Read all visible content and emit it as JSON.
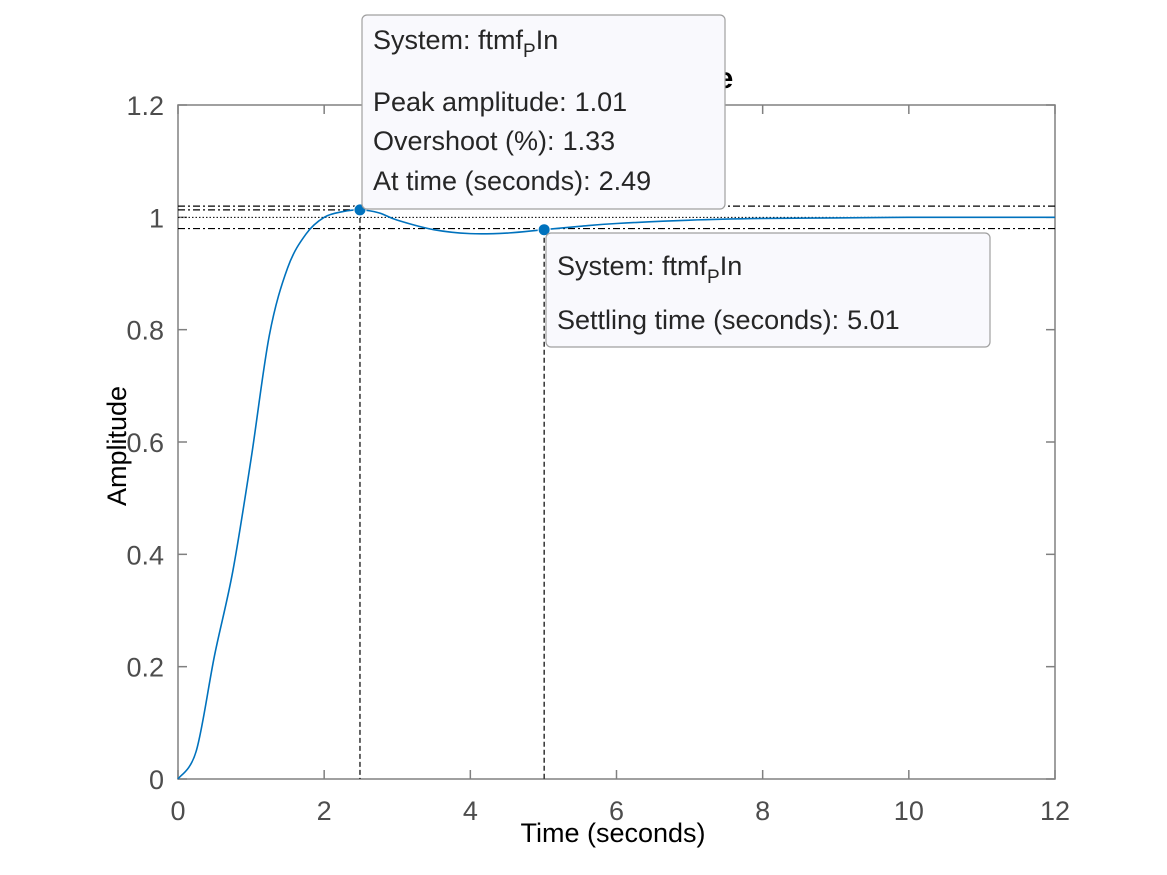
{
  "chart_data": {
    "type": "line",
    "title": "Step Response",
    "xlabel": "Time (seconds)",
    "ylabel": "Amplitude",
    "x": [
      0,
      0.25,
      0.5,
      0.75,
      1,
      1.25,
      1.5,
      1.75,
      2,
      2.25,
      2.49,
      2.75,
      3,
      3.5,
      4,
      4.5,
      5,
      5.5,
      6,
      7,
      8,
      9,
      10,
      11,
      12
    ],
    "y": [
      0,
      0.05,
      0.22,
      0.37,
      0.57,
      0.79,
      0.91,
      0.97,
      1.0,
      1.01,
      1.0133,
      1.008,
      0.995,
      0.978,
      0.971,
      0.972,
      0.978,
      0.984,
      0.989,
      0.995,
      0.998,
      0.999,
      1.0,
      1.0,
      1.0
    ],
    "color": "#0072bd",
    "xlim": [
      0,
      12
    ],
    "xticks": [
      0,
      2,
      4,
      6,
      8,
      10,
      12
    ],
    "ylim": [
      0,
      1.2
    ],
    "yticks": [
      0,
      0.2,
      0.4,
      0.6,
      0.8,
      1,
      1.2
    ],
    "steady_state": 1,
    "settling_band": [
      0.98,
      1.02
    ],
    "datatips": [
      {
        "system": [
          "System: ftmf",
          "P",
          "In"
        ],
        "y": 1.0133,
        "rows": [
          {
            "label": "Peak amplitude:",
            "value": 1.01
          },
          {
            "label": "Overshoot (%):",
            "value": 1.33
          },
          {
            "label": "At time (seconds):",
            "value": 2.49
          }
        ]
      },
      {
        "system": [
          "System: ftmf",
          "P",
          "In"
        ],
        "y": 0.978,
        "rows": [
          {
            "label": "Settling time (seconds):",
            "value": 5.01
          }
        ]
      }
    ]
  }
}
